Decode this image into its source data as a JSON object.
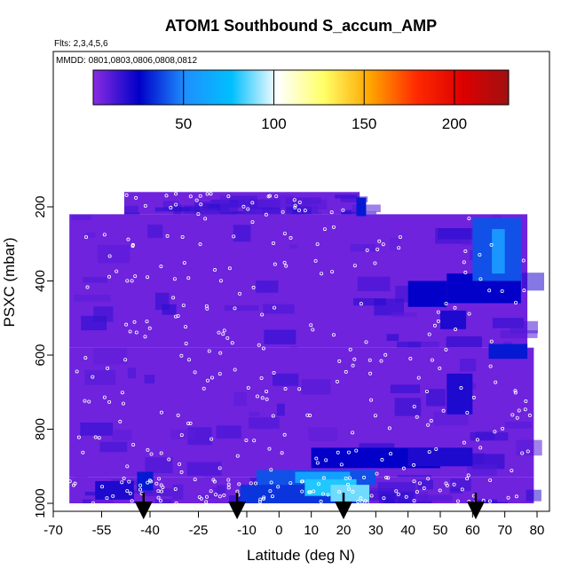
{
  "chart_data": {
    "type": "heatmap",
    "title": "ATOM1 Southbound S_accum_AMP",
    "subtitle_flights": "Flts: 2,3,4,5,6",
    "subtitle_dates": "MMDD: 0801,0803,0806,0808,0812",
    "xlabel": "Latitude (deg N)",
    "ylabel": "PSXC (mbar)",
    "xlim": [
      -70,
      80
    ],
    "ylim": [
      1000,
      150
    ],
    "y_reversed": true,
    "grid": false,
    "x_ticks": [
      -70,
      -55,
      -40,
      -25,
      -10,
      0,
      10,
      20,
      30,
      40,
      50,
      60,
      70,
      80
    ],
    "y_ticks": [
      200,
      400,
      600,
      800,
      1000
    ],
    "colorbar": {
      "placement": "top",
      "range": [
        0,
        230
      ],
      "ticks": [
        50,
        100,
        150,
        200
      ],
      "colors": [
        "#8a2be2",
        "#0000c8",
        "#1e90ff",
        "#00bfff",
        "#ffffff",
        "#ffff66",
        "#ffa500",
        "#ff2a00",
        "#dd0000",
        "#a01010"
      ]
    },
    "background_value": 5,
    "field_regions": [
      {
        "lat": [
          -57,
          -45
        ],
        "p": [
          940,
          990
        ],
        "value": 20
      },
      {
        "lat": [
          -44,
          -39
        ],
        "p": [
          915,
          965
        ],
        "value": 30
      },
      {
        "lat": [
          -12,
          27
        ],
        "p": [
          950,
          1000
        ],
        "value": 35
      },
      {
        "lat": [
          -7,
          30
        ],
        "p": [
          910,
          950
        ],
        "value": 40
      },
      {
        "lat": [
          5,
          22
        ],
        "p": [
          915,
          945
        ],
        "value": 60
      },
      {
        "lat": [
          8,
          24
        ],
        "p": [
          935,
          980
        ],
        "value": 80
      },
      {
        "lat": [
          16,
          28
        ],
        "p": [
          950,
          995
        ],
        "value": 88
      },
      {
        "lat": [
          10,
          50
        ],
        "p": [
          850,
          905
        ],
        "value": 25
      },
      {
        "lat": [
          24,
          27
        ],
        "p": [
          175,
          225
        ],
        "value": 30
      },
      {
        "lat": [
          40,
          52
        ],
        "p": [
          400,
          470
        ],
        "value": 25
      },
      {
        "lat": [
          52,
          75
        ],
        "p": [
          380,
          460
        ],
        "value": 25
      },
      {
        "lat": [
          60,
          75
        ],
        "p": [
          230,
          400
        ],
        "value": 40
      },
      {
        "lat": [
          66,
          70
        ],
        "p": [
          260,
          380
        ],
        "value": 55
      },
      {
        "lat": [
          65,
          77
        ],
        "p": [
          570,
          610
        ],
        "value": 30
      },
      {
        "lat": [
          50,
          58
        ],
        "p": [
          480,
          530
        ],
        "value": 20
      },
      {
        "lat": [
          52,
          60
        ],
        "p": [
          650,
          760
        ],
        "value": 20
      },
      {
        "lat": [
          40,
          60
        ],
        "p": [
          850,
          900
        ],
        "value": 20
      }
    ],
    "flight_tracks": [
      {
        "lat": [
          -48,
          25
        ],
        "p": [
          160,
          220
        ]
      },
      {
        "lat": [
          -65,
          77
        ],
        "p": [
          220,
          580
        ]
      },
      {
        "lat": [
          -65,
          79
        ],
        "p": [
          580,
          930
        ]
      },
      {
        "lat": [
          -65,
          79
        ],
        "p": [
          930,
          1000
        ]
      }
    ],
    "profile_markers_lat": [
      -42,
      -13,
      20,
      61
    ]
  }
}
